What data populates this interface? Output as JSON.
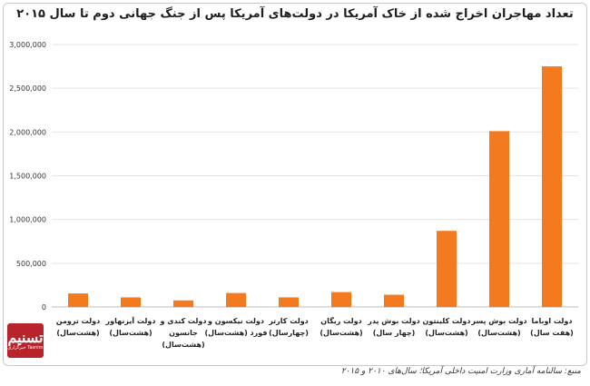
{
  "chart_data": {
    "type": "bar",
    "title": "تعداد مهاجران اخراج شده از خاک آمریکا در دولت‌های آمریکا پس از جنگ جهانی دوم تا سال ۲۰۱۵",
    "xlabel": "",
    "ylabel": "",
    "ylim": [
      0,
      3000000
    ],
    "yticks": [
      "0",
      "500,000",
      "1,000,000",
      "1,500,000",
      "2,000,000",
      "2,500,000",
      "3,000,000"
    ],
    "grid": true,
    "bar_color": "#f47a20",
    "categories": [
      [
        "دولت ترومن",
        "(هشت‌سال)"
      ],
      [
        "دولت آیزنهاور",
        "(هشت‌سال)"
      ],
      [
        "دولت کندی و",
        "جانسون",
        "(هشت‌سال)"
      ],
      [
        "دولت نیکسون و",
        "فورد (هشت‌سال)"
      ],
      [
        "دولت کارتر",
        "(چهارسال)"
      ],
      [
        "دولت ریگان",
        "(هشت‌سال)"
      ],
      [
        "دولت بوش پدر",
        "(چهار سال)"
      ],
      [
        "دولت کلینتون",
        "(هشت‌سال)"
      ],
      [
        "دولت بوش پسر",
        "(هشت‌سال)"
      ],
      [
        "دولت اوباما",
        "(هفت سال)"
      ]
    ],
    "values": [
      155000,
      110000,
      75000,
      160000,
      110000,
      170000,
      140000,
      870000,
      2010000,
      2750000
    ]
  },
  "logo": {
    "mark": "تسنیم",
    "sub": "خبرگزاری Tasnim"
  },
  "source": "منبع: سالنامه آماری وزارت امنیت داخلی آمریکا؛ سال‌های ۲۰۱۰ و ۲۰۱۵"
}
